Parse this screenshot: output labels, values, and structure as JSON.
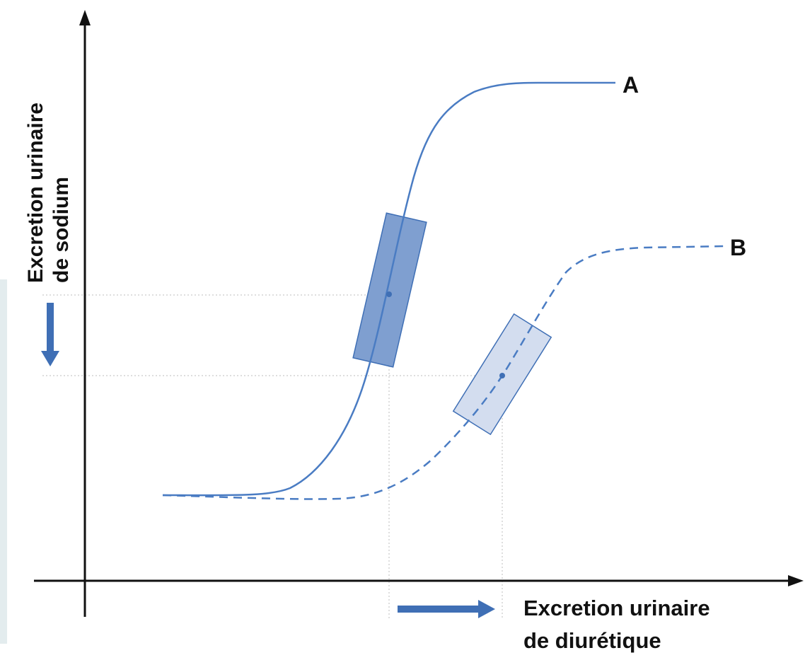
{
  "diagram": {
    "y_axis_label": [
      "Excretion urinaire",
      "de sodium"
    ],
    "x_axis_label": [
      "Excretion urinaire",
      "de diurétique"
    ],
    "curves": [
      {
        "id": "A",
        "label": "A",
        "style": "solid"
      },
      {
        "id": "B",
        "label": "B",
        "style": "dashed"
      }
    ],
    "arrows": {
      "y_shift": "down",
      "x_shift": "right"
    },
    "colors": {
      "curve": "#4a7cc3",
      "box_a_fill": "#7f9fd0",
      "box_b_fill": "#d3ddef",
      "arrow": "#3f6fb5",
      "axis": "#111111",
      "guide": "#bdbdbd"
    }
  }
}
